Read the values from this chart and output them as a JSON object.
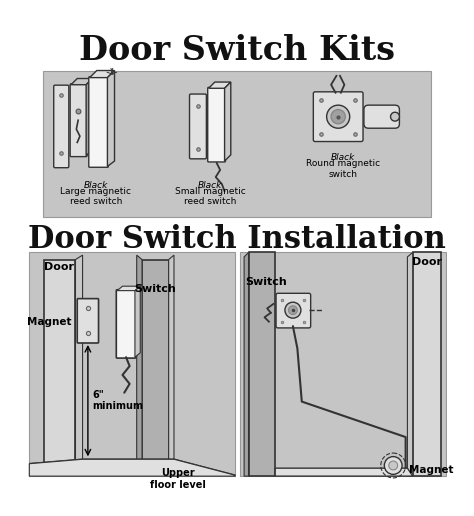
{
  "title1": "Door Switch Kits",
  "title2": "Door Switch Installation",
  "label1_title": "Black",
  "label1_sub": "Large magnetic\nreed switch",
  "label2_title": "Black",
  "label2_sub": "Small magnetic\nreed switch",
  "label3_title": "Black",
  "label3_sub": "Round magnetic\nswitch",
  "install_label1": "Door",
  "install_label2": "Switch",
  "install_label3": "Magnet",
  "install_label4": "6\"\nminimum",
  "install_label5": "Upper\nfloor level",
  "install_label6": "Switch",
  "install_label7": "Door",
  "install_label8": "Magnet",
  "bg_color": "#ffffff",
  "panel_color": "#c5c5c5",
  "wall_color": "#b0b0b0",
  "door_color": "#d8d8d8",
  "switch_white": "#f5f5f5",
  "switch_light": "#e0e0e0",
  "switch_mid": "#c8c8c8",
  "switch_dark": "#a0a0a0",
  "line_color": "#333333",
  "text_color": "#111111"
}
